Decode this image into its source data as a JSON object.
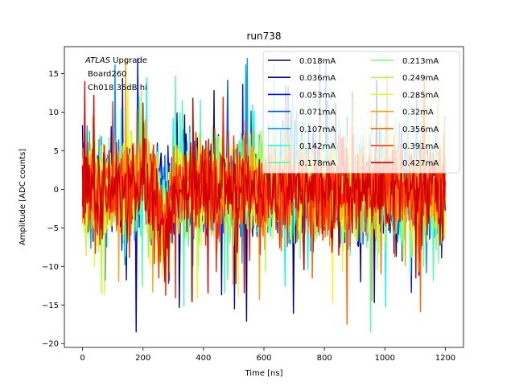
{
  "chart_data": {
    "type": "line",
    "title": "run738",
    "xlabel": "Time [ns]",
    "ylabel": "Amplitude [ADC counts]",
    "xlim": [
      -60,
      1260
    ],
    "ylim": [
      -20.5,
      18.5
    ],
    "xticks": [
      0,
      200,
      400,
      600,
      800,
      1000,
      1200
    ],
    "yticks": [
      -20,
      -15,
      -10,
      -5,
      0,
      5,
      10,
      15
    ],
    "x_range": [
      0,
      1200
    ],
    "annotation": {
      "prefix": "ATLAS",
      "suffix": " Upgrade",
      "line2": "Board260",
      "line3": "Ch018 35dB hi"
    },
    "legend_position": "top-right",
    "series": [
      {
        "name": "0.018mA",
        "color": "#00007f",
        "noise": 3.0
      },
      {
        "name": "0.036mA",
        "color": "#0000d0",
        "noise": 3.1
      },
      {
        "name": "0.053mA",
        "color": "#0010ff",
        "noise": 3.2
      },
      {
        "name": "0.071mA",
        "color": "#0058ff",
        "noise": 3.2
      },
      {
        "name": "0.107mA",
        "color": "#00a0ff",
        "noise": 3.3
      },
      {
        "name": "0.142mA",
        "color": "#16ffe1",
        "noise": 3.3
      },
      {
        "name": "0.178mA",
        "color": "#49ffad",
        "noise": 3.2
      },
      {
        "name": "0.213mA",
        "color": "#7dff7a",
        "noise": 3.2
      },
      {
        "name": "0.249mA",
        "color": "#b0ff46",
        "noise": 3.1
      },
      {
        "name": "0.285mA",
        "color": "#e4ff13",
        "noise": 3.1
      },
      {
        "name": "0.32mA",
        "color": "#ffa700",
        "noise": 3.0
      },
      {
        "name": "0.356mA",
        "color": "#ff6800",
        "noise": 3.0
      },
      {
        "name": "0.391mA",
        "color": "#ff2900",
        "noise": 3.0
      },
      {
        "name": "0.427mA",
        "color": "#d00000",
        "noise": 3.0
      }
    ]
  }
}
